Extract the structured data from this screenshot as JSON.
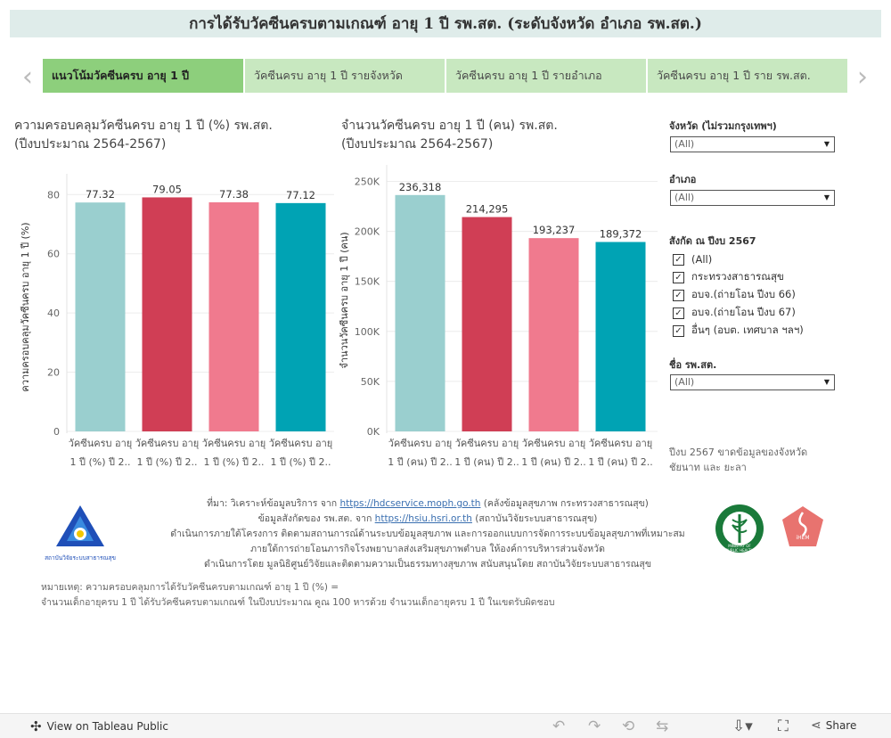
{
  "title": "การได้รับวัคซีนครบตามเกณฑ์ อายุ 1 ปี รพ.สต. (ระดับจังหวัด อำเภอ รพ.สต.)",
  "tabs": [
    {
      "label": "แนวโน้มวัคซีนครบ อายุ 1 ปี"
    },
    {
      "label": "วัคซีนครบ  อายุ 1 ปี  รายจังหวัด"
    },
    {
      "label": "วัคซีนครบ  อายุ 1 ปี  รายอำเภอ"
    },
    {
      "label": "วัคซีนครบ อายุ 1 ปี ราย รพ.สต."
    }
  ],
  "nav": {
    "prev": "‹",
    "next": "›"
  },
  "chart_data": [
    {
      "type": "bar",
      "title": "ความครอบคลุมวัคซีนครบ อายุ 1 ปี (%) รพ.สต.",
      "subtitle": "(ปีงบประมาณ 2564-2567)",
      "ylabel": "ความครอบคลุมวัคซีนครบ อายุ 1 ปี (%)",
      "xlabel": "",
      "ylim": [
        0,
        84
      ],
      "ticks": [
        0,
        20,
        40,
        60,
        80
      ],
      "tick_labels": [
        "0",
        "20",
        "40",
        "60",
        "80"
      ],
      "categories": [
        [
          "วัคซีนครบ อายุ",
          "1 ปี (%) ปี 2.."
        ],
        [
          "วัคซีนครบ อายุ",
          "1 ปี (%) ปี 2.."
        ],
        [
          "วัคซีนครบ อายุ",
          "1 ปี (%) ปี 2.."
        ],
        [
          "วัคซีนครบ อายุ",
          "1 ปี (%) ปี 2.."
        ]
      ],
      "values": [
        77.32,
        79.05,
        77.38,
        77.12
      ],
      "value_labels": [
        "77.32",
        "79.05",
        "77.38",
        "77.12"
      ],
      "colors": [
        "#9acfcf",
        "#d03e55",
        "#f07a8e",
        "#00a3b4"
      ],
      "grid": true
    },
    {
      "type": "bar",
      "title": "จำนวนวัคซีนครบ อายุ 1 ปี (คน) รพ.สต.",
      "subtitle": "(ปีงบประมาณ 2564-2567)",
      "ylabel": "จำนวนวัคซีนครบ อายุ 1 ปี (คน)",
      "xlabel": "",
      "ylim": [
        0,
        262000
      ],
      "ticks": [
        0,
        50000,
        100000,
        150000,
        200000,
        250000
      ],
      "tick_labels": [
        "0K",
        "50K",
        "100K",
        "150K",
        "200K",
        "250K"
      ],
      "categories": [
        [
          "วัคซีนครบ อายุ",
          "1 ปี (คน) ปี 2.."
        ],
        [
          "วัคซีนครบ อายุ",
          "1 ปี (คน) ปี 2.."
        ],
        [
          "วัคซีนครบ อายุ",
          "1 ปี (คน) ปี 2.."
        ],
        [
          "วัคซีนครบ อายุ",
          "1 ปี (คน) ปี 2.."
        ]
      ],
      "values": [
        236318,
        214295,
        193237,
        189372
      ],
      "value_labels": [
        "236,318",
        "214,295",
        "193,237",
        "189,372"
      ],
      "colors": [
        "#9acfcf",
        "#d03e55",
        "#f07a8e",
        "#00a3b4"
      ],
      "grid": true
    }
  ],
  "filters": {
    "province_label": "จังหวัด (ไม่รวมกรุงเทพฯ)",
    "province_value": "(All)",
    "district_label": "อำเภอ",
    "district_value": "(All)",
    "affiliation_label": "สังกัด ณ ปีงบ 2567",
    "affiliation_options": [
      {
        "label": "(All)",
        "checked": true
      },
      {
        "label": "กระทรวงสาธารณสุข",
        "checked": true
      },
      {
        "label": "อบจ.(ถ่ายโอน ปีงบ 66)",
        "checked": true
      },
      {
        "label": "อบจ.(ถ่ายโอน ปีงบ 67)",
        "checked": true
      },
      {
        "label": "อื่นๆ (อบต. เทศบาล ฯลฯ)",
        "checked": true
      }
    ],
    "hospital_label": "ชื่อ รพ.สต.",
    "hospital_value": "(All)",
    "note": "ปีงบ 2567 ขาดข้อมูลของจังหวัด ชัยนาท และ ยะลา"
  },
  "source": {
    "line1_prefix": "ที่มา: วิเคราะห์ข้อมูลบริการ จาก ",
    "line1_link": "https://hdcservice.moph.go.th",
    "line1_suffix": " (คลังข้อมูลสุขภาพ กระทรวงสาธารณสุข)",
    "line2_prefix": "ข้อมูลสังกัดของ รพ.สต. จาก ",
    "line2_link": "https://hsiu.hsri.or.th",
    "line2_suffix": " (สถาบันวิจัยระบบสาธารณสุข)",
    "line3": "ดำเนินการภายใต้โครงการ ติดตามสถานการณ์ด้านระบบข้อมูลสุขภาพ และการออกแบบการจัดการระบบข้อมูลสุขภาพที่เหมาะสม",
    "line4": "ภายใต้การถ่ายโอนภารกิจโรงพยาบาลส่งเสริมสุขภาพตำบล ให้องค์การบริหารส่วนจังหวัด",
    "line5": "ดำเนินการโดย มูลนิธิศูนย์วิจัยและติดตามความเป็นธรรมทางสุขภาพ สนับสนุนโดย สถาบันวิจัยระบบสาธารณสุข"
  },
  "remark": {
    "line1": "หมายเหตุ: ความครอบคลุมการได้รับวัคซีนครบตามเกณฑ์ อายุ 1 ปี (%) =",
    "line2": "จำนวนเด็กอายุครบ 1 ปี ได้รับวัคซีนครบตามเกณฑ์ ในปีงบประมาณ คูณ 100 หารด้วย จำนวนเด็กอายุครบ 1 ปี ในเขตรับผิดชอบ"
  },
  "logos": {
    "hsri_caption": "สถาบันวิจัยระบบสาธารณสุข",
    "moph_caption": "MINISTRY OF PUBLIC HEALTH",
    "ihem_caption": "iHEM"
  },
  "footer": {
    "view_label": "View on Tableau Public",
    "share_label": "Share"
  },
  "colors": {
    "accent_green": "#8dcf7c",
    "tab_green": "#c8e8c0",
    "title_bg": "#dfecea"
  }
}
